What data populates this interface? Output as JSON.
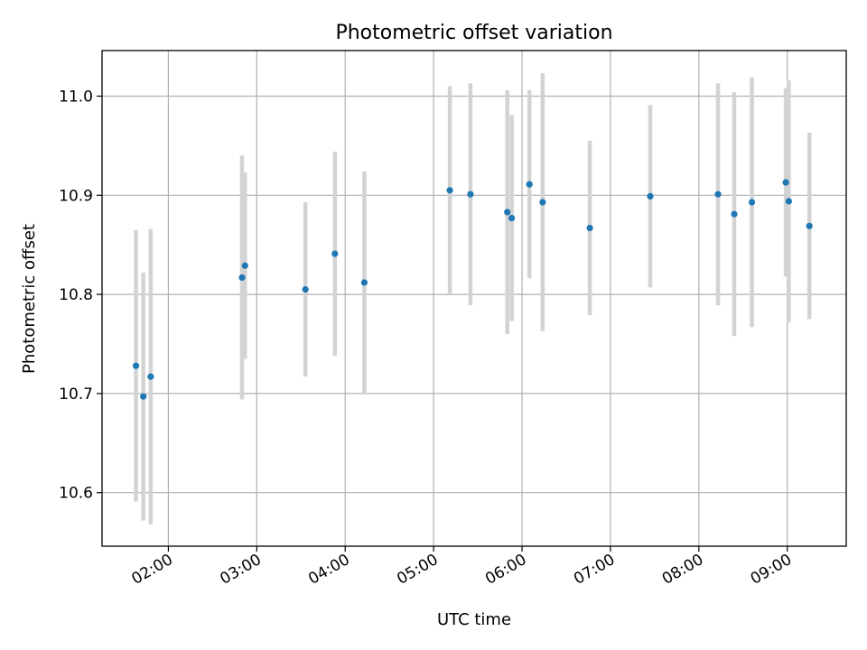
{
  "chart_data": {
    "type": "scatter",
    "title": "Photometric offset variation",
    "xlabel": "UTC time",
    "ylabel": "Photometric offset",
    "x_tick_labels": [
      "02:00",
      "03:00",
      "04:00",
      "05:00",
      "06:00",
      "07:00",
      "08:00",
      "09:00"
    ],
    "y_tick_labels": [
      "10.6",
      "10.7",
      "10.8",
      "10.9",
      "11.0"
    ],
    "y_ticks": [
      10.6,
      10.7,
      10.8,
      10.9,
      11.0
    ],
    "xlim": [
      "01:15",
      "09:40"
    ],
    "ylim": [
      10.546,
      11.046
    ],
    "grid": true,
    "marker_color": "#1f77b4",
    "errorbar_color": "#d3d3d3",
    "points": [
      {
        "time": "01:38",
        "y": 10.728,
        "err": 0.137
      },
      {
        "time": "01:43",
        "y": 10.697,
        "err": 0.125
      },
      {
        "time": "01:48",
        "y": 10.717,
        "err": 0.149
      },
      {
        "time": "02:50",
        "y": 10.817,
        "err": 0.123
      },
      {
        "time": "02:52",
        "y": 10.829,
        "err": 0.094
      },
      {
        "time": "03:33",
        "y": 10.805,
        "err": 0.088
      },
      {
        "time": "03:53",
        "y": 10.841,
        "err": 0.103
      },
      {
        "time": "04:13",
        "y": 10.812,
        "err": 0.112
      },
      {
        "time": "05:11",
        "y": 10.905,
        "err": 0.105
      },
      {
        "time": "05:25",
        "y": 10.901,
        "err": 0.112
      },
      {
        "time": "05:50",
        "y": 10.883,
        "err": 0.123
      },
      {
        "time": "05:53",
        "y": 10.877,
        "err": 0.104
      },
      {
        "time": "06:05",
        "y": 10.911,
        "err": 0.095
      },
      {
        "time": "06:14",
        "y": 10.893,
        "err": 0.13
      },
      {
        "time": "06:46",
        "y": 10.867,
        "err": 0.088
      },
      {
        "time": "07:27",
        "y": 10.899,
        "err": 0.092
      },
      {
        "time": "08:13",
        "y": 10.901,
        "err": 0.112
      },
      {
        "time": "08:24",
        "y": 10.881,
        "err": 0.123
      },
      {
        "time": "08:36",
        "y": 10.893,
        "err": 0.126
      },
      {
        "time": "08:59",
        "y": 10.913,
        "err": 0.095
      },
      {
        "time": "09:01",
        "y": 10.894,
        "err": 0.122
      },
      {
        "time": "09:15",
        "y": 10.869,
        "err": 0.094
      }
    ]
  }
}
